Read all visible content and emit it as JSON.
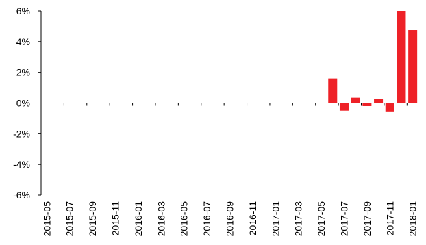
{
  "chart_data": {
    "type": "bar",
    "title": "",
    "xlabel": "",
    "ylabel": "",
    "ylim": [
      -6,
      6
    ],
    "y_ticks": [
      -6,
      -4,
      -2,
      0,
      2,
      4,
      6
    ],
    "y_tick_labels": [
      "-6%",
      "-4%",
      "-2%",
      "0%",
      "2%",
      "4%",
      "6%"
    ],
    "x_tick_labels": [
      "2015-05",
      "2015-07",
      "2015-09",
      "2015-11",
      "2016-01",
      "2016-03",
      "2016-05",
      "2016-07",
      "2016-09",
      "2016-11",
      "2017-01",
      "2017-03",
      "2017-05",
      "2017-07",
      "2017-09",
      "2017-11",
      "2018-01"
    ],
    "categories": [
      "2015-05",
      "2015-06",
      "2015-07",
      "2015-08",
      "2015-09",
      "2015-10",
      "2015-11",
      "2015-12",
      "2016-01",
      "2016-02",
      "2016-03",
      "2016-04",
      "2016-05",
      "2016-06",
      "2016-07",
      "2016-08",
      "2016-09",
      "2016-10",
      "2016-11",
      "2016-12",
      "2017-01",
      "2017-02",
      "2017-03",
      "2017-04",
      "2017-05",
      "2017-06",
      "2017-07",
      "2017-08",
      "2017-09",
      "2017-10",
      "2017-11",
      "2017-12",
      "2018-01"
    ],
    "values": [
      0,
      0,
      0,
      0,
      0,
      0,
      0,
      0,
      0,
      0,
      0,
      0,
      0,
      0,
      0,
      0,
      0,
      0,
      0,
      0,
      0,
      0,
      0,
      0,
      0,
      1.6,
      -0.5,
      0.35,
      -0.2,
      0.25,
      -0.55,
      6.0,
      4.75
    ],
    "bar_color": "#ee2127",
    "grid": false,
    "legend": "none"
  }
}
